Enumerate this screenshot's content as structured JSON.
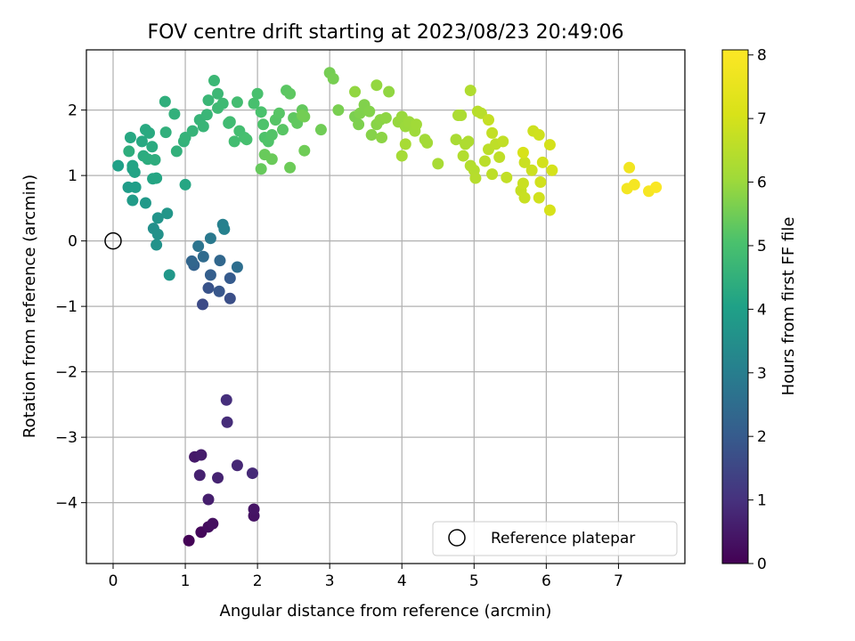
{
  "chart_data": {
    "type": "scatter",
    "title": "FOV centre drift starting at 2023/08/23 20:49:06",
    "xlabel": "Angular distance from reference (arcmin)",
    "ylabel": "Rotation from reference (arcmin)",
    "xlim": [
      -0.37,
      7.92
    ],
    "ylim": [
      -4.93,
      2.92
    ],
    "xticks": [
      0,
      1,
      2,
      3,
      4,
      5,
      6,
      7
    ],
    "yticks": [
      -4,
      -3,
      -2,
      -1,
      0,
      1,
      2
    ],
    "xtick_labels": [
      "0",
      "1",
      "2",
      "3",
      "4",
      "5",
      "6",
      "7"
    ],
    "ytick_labels": [
      "−4",
      "−3",
      "−2",
      "−1",
      "0",
      "1",
      "2"
    ],
    "grid": true,
    "legend": {
      "placement": "lower-right",
      "label": "Reference platepar"
    },
    "reference_point": [
      0,
      0
    ],
    "colorbar": {
      "label": "Hours from first FF file",
      "range": [
        0,
        8.08
      ],
      "ticks": [
        0,
        1,
        2,
        3,
        4,
        5,
        6,
        7,
        8
      ],
      "tick_labels": [
        "0",
        "1",
        "2",
        "3",
        "4",
        "5",
        "6",
        "7",
        "8"
      ],
      "colormap": "viridis"
    },
    "points": [
      [
        1.05,
        -4.58,
        0.05
      ],
      [
        1.22,
        -4.45,
        0.15
      ],
      [
        1.32,
        -4.37,
        0.25
      ],
      [
        1.38,
        -4.32,
        0.3
      ],
      [
        1.95,
        -4.2,
        0.35
      ],
      [
        1.95,
        -4.1,
        0.4
      ],
      [
        1.13,
        -3.3,
        0.5
      ],
      [
        1.22,
        -3.27,
        0.55
      ],
      [
        1.32,
        -3.95,
        0.6
      ],
      [
        1.2,
        -3.58,
        0.65
      ],
      [
        1.45,
        -3.62,
        0.7
      ],
      [
        1.72,
        -3.43,
        0.8
      ],
      [
        1.93,
        -3.55,
        0.85
      ],
      [
        1.58,
        -2.77,
        0.9
      ],
      [
        1.57,
        -2.43,
        0.95
      ],
      [
        1.24,
        -0.97,
        1.6
      ],
      [
        1.62,
        -0.88,
        1.7
      ],
      [
        1.32,
        -0.72,
        1.8
      ],
      [
        1.47,
        -0.77,
        1.9
      ],
      [
        1.62,
        -0.57,
        2.0
      ],
      [
        1.35,
        -0.52,
        2.1
      ],
      [
        1.12,
        -0.37,
        2.2
      ],
      [
        1.09,
        -0.31,
        2.3
      ],
      [
        1.48,
        -0.3,
        2.35
      ],
      [
        1.25,
        -0.24,
        2.45
      ],
      [
        1.72,
        -0.4,
        2.55
      ],
      [
        1.18,
        -0.08,
        2.7
      ],
      [
        1.35,
        0.04,
        2.85
      ],
      [
        1.52,
        0.25,
        3.05
      ],
      [
        1.54,
        0.18,
        3.1
      ],
      [
        0.56,
        0.19,
        3.5
      ],
      [
        0.62,
        0.1,
        3.55
      ],
      [
        0.6,
        -0.06,
        3.6
      ],
      [
        0.62,
        0.35,
        3.65
      ],
      [
        0.75,
        0.42,
        3.7
      ],
      [
        0.78,
        -0.52,
        3.75
      ],
      [
        0.45,
        0.58,
        3.8
      ],
      [
        0.27,
        0.62,
        3.85
      ],
      [
        0.21,
        0.82,
        3.9
      ],
      [
        0.31,
        0.82,
        3.95
      ],
      [
        0.07,
        1.15,
        4.0
      ],
      [
        0.27,
        1.1,
        4.05
      ],
      [
        0.3,
        1.05,
        4.1
      ],
      [
        0.27,
        1.15,
        4.12
      ],
      [
        0.55,
        0.95,
        4.15
      ],
      [
        0.6,
        0.96,
        4.18
      ],
      [
        1.0,
        0.86,
        4.2
      ],
      [
        0.24,
        1.58,
        4.22
      ],
      [
        0.4,
        1.52,
        4.25
      ],
      [
        0.45,
        1.7,
        4.28
      ],
      [
        0.5,
        1.65,
        4.3
      ],
      [
        0.54,
        1.44,
        4.32
      ],
      [
        0.42,
        1.3,
        4.35
      ],
      [
        0.48,
        1.25,
        4.38
      ],
      [
        0.58,
        1.24,
        4.4
      ],
      [
        0.22,
        1.37,
        4.42
      ],
      [
        0.72,
        2.13,
        4.45
      ],
      [
        0.73,
        1.66,
        4.48
      ],
      [
        0.85,
        1.94,
        4.5
      ],
      [
        0.88,
        1.37,
        4.52
      ],
      [
        0.98,
        1.52,
        4.55
      ],
      [
        1.0,
        1.58,
        4.58
      ],
      [
        1.1,
        1.68,
        4.6
      ],
      [
        1.2,
        1.85,
        4.62
      ],
      [
        1.25,
        1.75,
        4.65
      ],
      [
        1.3,
        1.93,
        4.68
      ],
      [
        1.32,
        2.15,
        4.7
      ],
      [
        1.4,
        2.45,
        4.72
      ],
      [
        1.45,
        2.25,
        4.75
      ],
      [
        1.45,
        2.03,
        4.78
      ],
      [
        1.52,
        2.1,
        4.8
      ],
      [
        1.6,
        1.8,
        4.82
      ],
      [
        1.62,
        1.82,
        4.85
      ],
      [
        1.68,
        1.52,
        4.88
      ],
      [
        1.72,
        2.12,
        4.9
      ],
      [
        1.75,
        1.68,
        4.92
      ],
      [
        1.82,
        1.58,
        4.95
      ],
      [
        1.85,
        1.55,
        4.98
      ],
      [
        1.95,
        2.1,
        5.0
      ],
      [
        2.0,
        2.25,
        5.02
      ],
      [
        2.05,
        1.97,
        5.05
      ],
      [
        2.08,
        1.78,
        5.08
      ],
      [
        2.1,
        1.58,
        5.1
      ],
      [
        2.15,
        1.52,
        5.12
      ],
      [
        2.2,
        1.62,
        5.15
      ],
      [
        2.25,
        1.85,
        5.18
      ],
      [
        2.3,
        1.95,
        5.2
      ],
      [
        2.35,
        1.7,
        5.22
      ],
      [
        2.4,
        2.3,
        5.25
      ],
      [
        2.45,
        2.25,
        5.28
      ],
      [
        2.5,
        1.88,
        5.3
      ],
      [
        2.55,
        1.8,
        5.32
      ],
      [
        2.62,
        2.0,
        5.35
      ],
      [
        2.05,
        1.1,
        5.38
      ],
      [
        2.1,
        1.32,
        5.4
      ],
      [
        2.2,
        1.25,
        5.42
      ],
      [
        2.45,
        1.12,
        5.45
      ],
      [
        2.65,
        1.38,
        5.48
      ],
      [
        2.88,
        1.7,
        5.5
      ],
      [
        2.65,
        1.9,
        5.52
      ],
      [
        2.62,
        1.92,
        5.53
      ],
      [
        3.0,
        2.57,
        5.55
      ],
      [
        3.05,
        2.48,
        5.58
      ],
      [
        3.12,
        2.0,
        5.6
      ],
      [
        3.35,
        1.9,
        5.62
      ],
      [
        3.4,
        1.78,
        5.65
      ],
      [
        3.42,
        1.95,
        5.68
      ],
      [
        3.48,
        2.08,
        5.7
      ],
      [
        3.55,
        1.98,
        5.72
      ],
      [
        3.58,
        1.62,
        5.75
      ],
      [
        3.65,
        1.78,
        5.78
      ],
      [
        3.7,
        1.85,
        5.8
      ],
      [
        3.72,
        1.58,
        5.82
      ],
      [
        3.78,
        1.88,
        5.85
      ],
      [
        3.82,
        2.28,
        5.88
      ],
      [
        3.35,
        2.28,
        5.9
      ],
      [
        3.65,
        2.38,
        5.92
      ],
      [
        3.95,
        1.82,
        5.95
      ],
      [
        4.0,
        1.9,
        5.98
      ],
      [
        4.05,
        1.75,
        6.0
      ],
      [
        4.1,
        1.82,
        6.02
      ],
      [
        4.18,
        1.68,
        6.05
      ],
      [
        4.2,
        1.78,
        6.08
      ],
      [
        4.32,
        1.55,
        6.1
      ],
      [
        4.35,
        1.5,
        6.12
      ],
      [
        4.0,
        1.3,
        6.15
      ],
      [
        4.05,
        1.48,
        6.18
      ],
      [
        4.5,
        1.18,
        6.2
      ],
      [
        4.75,
        1.55,
        6.22
      ],
      [
        4.78,
        1.92,
        6.25
      ],
      [
        4.82,
        1.92,
        6.27
      ],
      [
        4.88,
        1.48,
        6.3
      ],
      [
        4.92,
        1.52,
        6.32
      ],
      [
        4.95,
        2.3,
        6.35
      ],
      [
        4.85,
        1.3,
        6.38
      ],
      [
        4.95,
        1.15,
        6.4
      ],
      [
        5.0,
        1.08,
        6.42
      ],
      [
        5.02,
        0.96,
        6.45
      ],
      [
        5.05,
        1.98,
        6.48
      ],
      [
        5.1,
        1.95,
        6.5
      ],
      [
        5.15,
        1.22,
        6.52
      ],
      [
        5.2,
        1.4,
        6.55
      ],
      [
        5.25,
        1.02,
        6.58
      ],
      [
        5.3,
        1.48,
        6.6
      ],
      [
        5.35,
        1.28,
        6.62
      ],
      [
        5.4,
        1.52,
        6.65
      ],
      [
        5.45,
        0.97,
        6.68
      ],
      [
        5.25,
        1.65,
        6.7
      ],
      [
        5.2,
        1.85,
        6.72
      ],
      [
        5.65,
        0.77,
        6.75
      ],
      [
        5.7,
        0.66,
        6.78
      ],
      [
        5.68,
        0.88,
        6.8
      ],
      [
        5.7,
        1.2,
        6.82
      ],
      [
        5.8,
        1.08,
        6.85
      ],
      [
        5.82,
        1.68,
        6.88
      ],
      [
        5.9,
        1.62,
        6.9
      ],
      [
        5.9,
        0.66,
        6.92
      ],
      [
        5.92,
        0.9,
        6.95
      ],
      [
        5.95,
        1.2,
        6.98
      ],
      [
        6.05,
        1.47,
        7.0
      ],
      [
        6.08,
        1.08,
        7.02
      ],
      [
        6.05,
        0.47,
        7.05
      ],
      [
        5.68,
        1.35,
        7.08
      ],
      [
        7.15,
        1.12,
        7.75
      ],
      [
        7.12,
        0.8,
        7.8
      ],
      [
        7.22,
        0.86,
        7.85
      ],
      [
        7.42,
        0.76,
        7.9
      ],
      [
        7.52,
        0.82,
        8.0
      ]
    ]
  }
}
